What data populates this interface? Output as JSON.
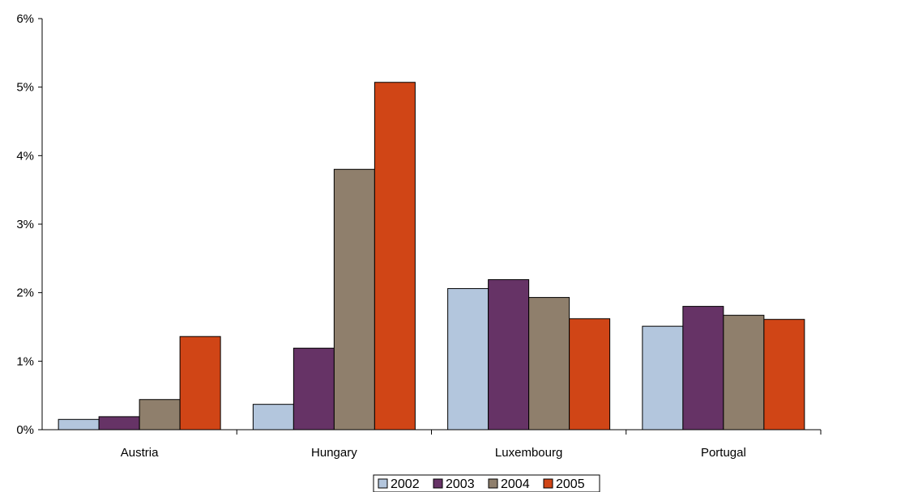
{
  "chart_data": {
    "type": "bar",
    "title": "",
    "xlabel": "",
    "ylabel": "",
    "categories": [
      "Austria",
      "Hungary",
      "Luxembourg",
      "Portugal"
    ],
    "series": [
      {
        "name": "2002",
        "color": "#b3c6dd",
        "values": [
          0.15,
          0.37,
          2.06,
          1.51
        ]
      },
      {
        "name": "2003",
        "color": "#663366",
        "values": [
          0.19,
          1.19,
          2.19,
          1.8
        ]
      },
      {
        "name": "2004",
        "color": "#8f7f6c",
        "values": [
          0.44,
          3.8,
          1.93,
          1.67
        ]
      },
      {
        "name": "2005",
        "color": "#d04516",
        "values": [
          1.36,
          5.07,
          1.62,
          1.61
        ]
      }
    ],
    "ylim": [
      0,
      6
    ],
    "yticks": [
      0,
      1,
      2,
      3,
      4,
      5,
      6
    ],
    "ytick_labels": [
      "0%",
      "1%",
      "2%",
      "3%",
      "4%",
      "5%",
      "6%"
    ],
    "legend_position": "bottom",
    "grid": false
  }
}
